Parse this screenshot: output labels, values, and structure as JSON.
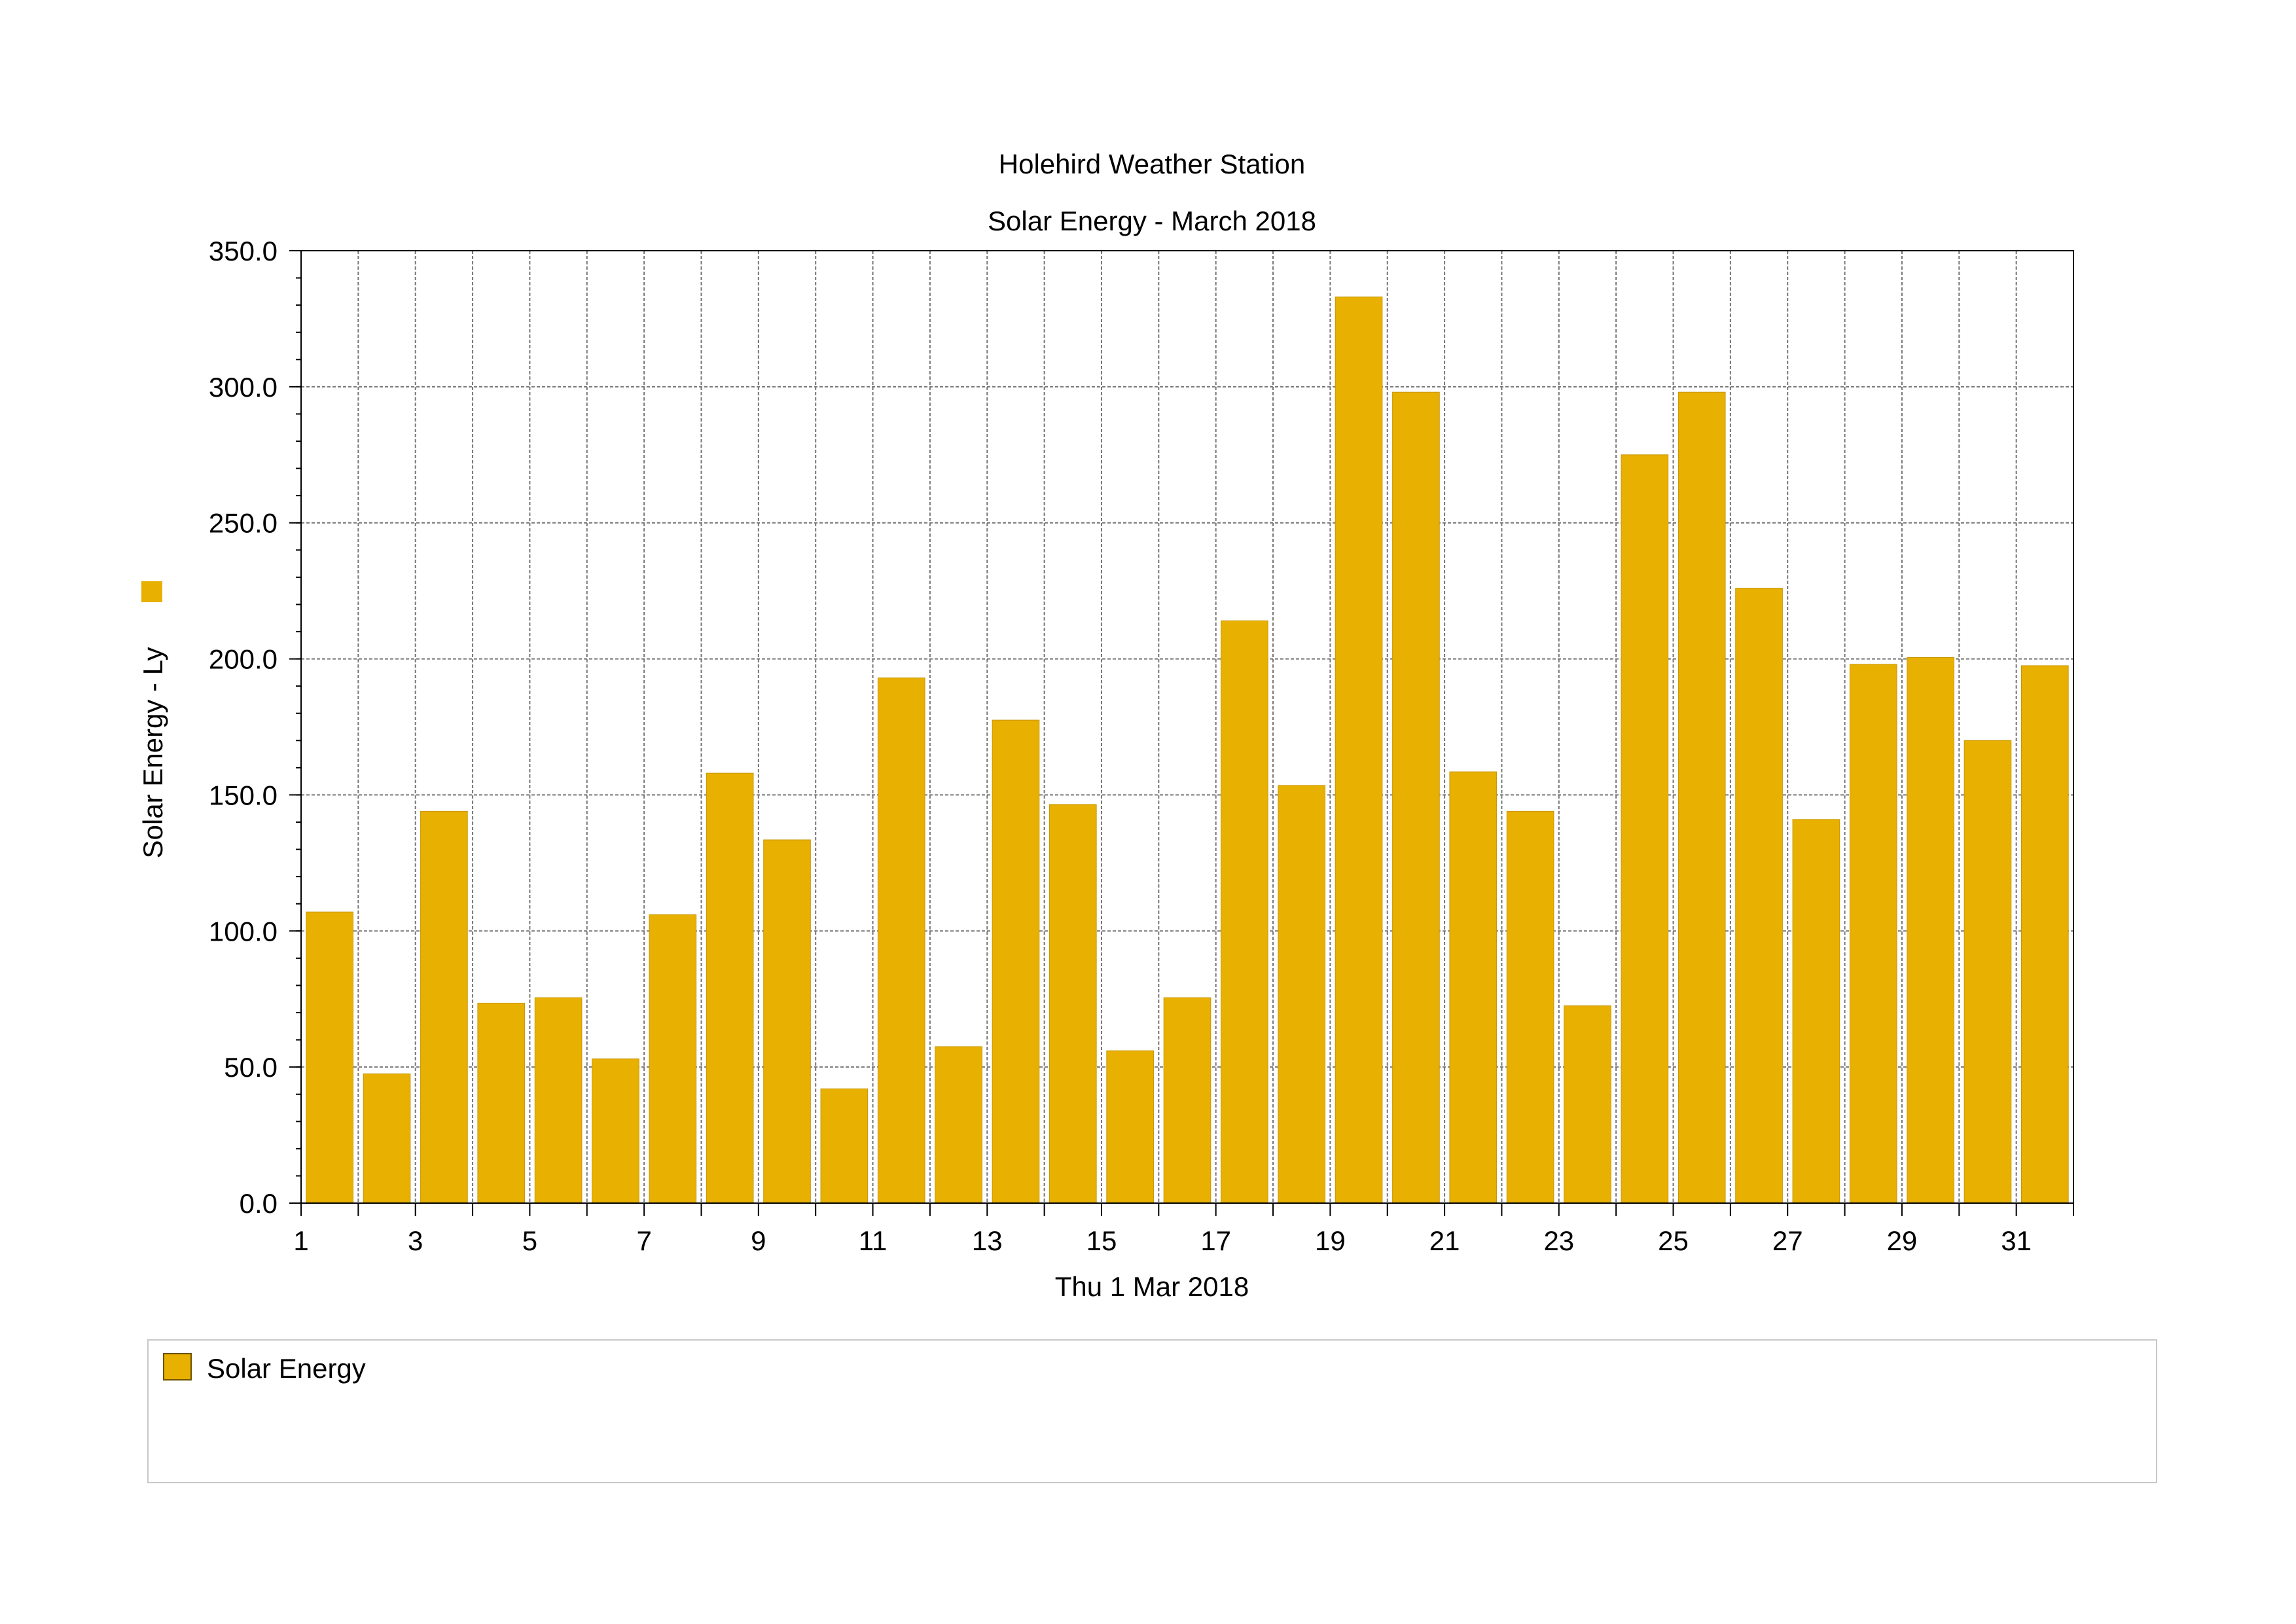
{
  "chart_data": {
    "type": "bar",
    "title": "Holehird Weather Station",
    "subtitle": "Solar Energy - March 2018",
    "xlabel": "Thu 1 Mar 2018",
    "ylabel": "Solar Energy - Ly",
    "ylim": [
      0,
      350
    ],
    "y_ticks": [
      "0.0",
      "50.0",
      "100.0",
      "150.0",
      "200.0",
      "250.0",
      "300.0",
      "350.0"
    ],
    "x_ticks": [
      "1",
      "3",
      "5",
      "7",
      "9",
      "11",
      "13",
      "15",
      "17",
      "19",
      "21",
      "23",
      "25",
      "27",
      "29",
      "31"
    ],
    "grid": true,
    "legend_position": "bottom",
    "x": [
      1,
      2,
      3,
      4,
      5,
      6,
      7,
      8,
      9,
      10,
      11,
      12,
      13,
      14,
      15,
      16,
      17,
      18,
      19,
      20,
      21,
      22,
      23,
      24,
      25,
      26,
      27,
      28,
      29,
      30,
      31
    ],
    "series": [
      {
        "name": "Solar Energy",
        "color": "#E8B000",
        "values": [
          107,
          47.5,
          144,
          73.5,
          75.5,
          53,
          106,
          158,
          133.5,
          42,
          193,
          57.5,
          177.5,
          146.5,
          56,
          75.5,
          214,
          153.5,
          333,
          298,
          158.5,
          144,
          72.5,
          275,
          298,
          226,
          141,
          198,
          200.5,
          170,
          197.5
        ]
      }
    ]
  }
}
